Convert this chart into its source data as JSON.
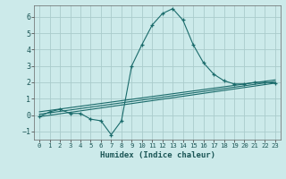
{
  "xlabel": "Humidex (Indice chaleur)",
  "bg_color": "#cceaea",
  "grid_color": "#aacccc",
  "line_color": "#1a6b6b",
  "xlim": [
    -0.5,
    23.5
  ],
  "ylim": [
    -1.5,
    6.7
  ],
  "xticks": [
    0,
    1,
    2,
    3,
    4,
    5,
    6,
    7,
    8,
    9,
    10,
    11,
    12,
    13,
    14,
    15,
    16,
    17,
    18,
    19,
    20,
    21,
    22,
    23
  ],
  "yticks": [
    -1,
    0,
    1,
    2,
    3,
    4,
    5,
    6
  ],
  "main_x": [
    0,
    1,
    2,
    3,
    4,
    5,
    6,
    7,
    8,
    9,
    10,
    11,
    12,
    13,
    14,
    15,
    16,
    17,
    18,
    19,
    20,
    21,
    22,
    23
  ],
  "main_y": [
    -0.1,
    0.2,
    0.35,
    0.1,
    0.1,
    -0.25,
    -0.35,
    -1.2,
    -0.35,
    3.0,
    4.3,
    5.5,
    6.2,
    6.5,
    5.8,
    4.3,
    3.2,
    2.5,
    2.1,
    1.9,
    1.9,
    2.0,
    2.0,
    1.95
  ],
  "line2_x": [
    0,
    23
  ],
  "line2_y": [
    -0.1,
    1.95
  ],
  "line3_x": [
    0,
    23
  ],
  "line3_y": [
    0.05,
    2.05
  ],
  "line4_x": [
    0,
    23
  ],
  "line4_y": [
    0.2,
    2.15
  ]
}
